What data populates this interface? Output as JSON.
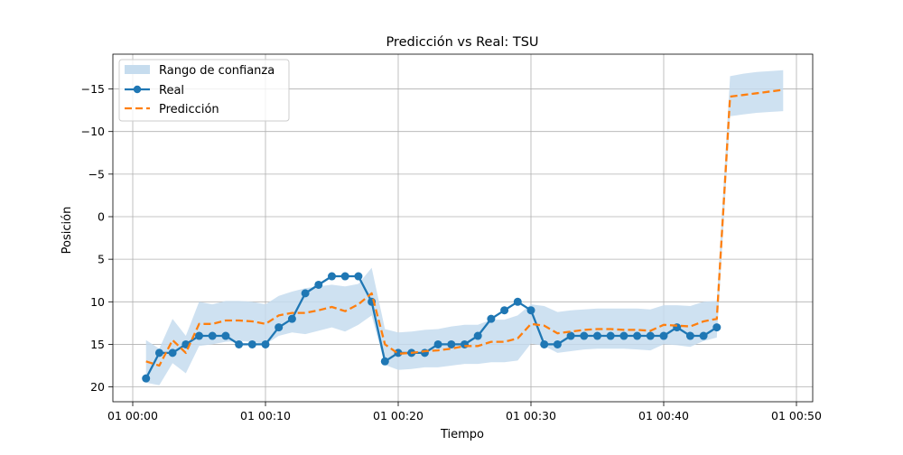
{
  "chart_data": {
    "type": "line",
    "title": "Predicción vs Real: TSU",
    "xlabel": "Tiempo",
    "ylabel": "Posición",
    "y_inverted": true,
    "grid": true,
    "legend_position": "upper-left",
    "x_ticks": [
      {
        "minute": 0,
        "label": "01 00:00"
      },
      {
        "minute": 10,
        "label": "01 00:10"
      },
      {
        "minute": 20,
        "label": "01 00:20"
      },
      {
        "minute": 30,
        "label": "01 00:30"
      },
      {
        "minute": 40,
        "label": "01 00:40"
      },
      {
        "minute": 50,
        "label": "01 00:50"
      }
    ],
    "y_ticks": [
      20,
      15,
      10,
      5,
      0,
      -5,
      -10,
      -15
    ],
    "y_tick_labels": [
      "20",
      "15",
      "10",
      "5",
      "0",
      "−5",
      "−10",
      "−15"
    ],
    "colors": {
      "real": "#1f77b4",
      "prediction": "#ff7f0e",
      "band": "#c6dcee"
    },
    "legend": {
      "band": "Rango de confianza",
      "real": "Real",
      "prediction": "Predicción"
    },
    "real": {
      "name": "Real",
      "x": [
        1,
        2,
        3,
        4,
        5,
        6,
        7,
        8,
        9,
        10,
        11,
        12,
        13,
        14,
        15,
        16,
        17,
        18,
        19,
        20,
        21,
        22,
        23,
        24,
        25,
        26,
        27,
        28,
        29,
        30,
        31,
        32,
        33,
        34,
        35,
        36,
        37,
        38,
        39,
        40,
        41,
        42,
        43,
        44
      ],
      "y": [
        19,
        16,
        16,
        15,
        14,
        14,
        14,
        15,
        15,
        15,
        13,
        12,
        9,
        8,
        7,
        7,
        7,
        10,
        17,
        16,
        16,
        16,
        15,
        15,
        15,
        14,
        12,
        11,
        10,
        11,
        15,
        15,
        14,
        14,
        14,
        14,
        14,
        14,
        14,
        14,
        13,
        14,
        14,
        13
      ]
    },
    "prediction": {
      "name": "Predicción",
      "x": [
        1,
        2,
        3,
        4,
        5,
        6,
        7,
        8,
        9,
        10,
        11,
        12,
        13,
        14,
        15,
        16,
        17,
        18,
        19,
        20,
        21,
        22,
        23,
        24,
        25,
        26,
        27,
        28,
        29,
        30,
        31,
        32,
        33,
        34,
        35,
        36,
        37,
        38,
        39,
        40,
        41,
        42,
        43,
        44,
        45,
        46,
        47,
        48,
        49
      ],
      "y": [
        17,
        17.5,
        14.5,
        16,
        12.6,
        12.6,
        12.2,
        12.2,
        12.3,
        12.6,
        11.6,
        11.3,
        11.3,
        11.0,
        10.6,
        11.1,
        10.3,
        9.0,
        15.0,
        16.1,
        16.0,
        15.8,
        15.7,
        15.5,
        15.2,
        15.2,
        14.7,
        14.7,
        14.3,
        12.6,
        12.8,
        13.7,
        13.5,
        13.3,
        13.2,
        13.2,
        13.3,
        13.3,
        13.4,
        12.7,
        12.8,
        12.9,
        12.3,
        12.0,
        -14.1,
        -14.3,
        -14.5,
        -14.7,
        -14.9
      ]
    },
    "confidence_band": {
      "x": [
        1,
        2,
        3,
        4,
        5,
        6,
        7,
        8,
        9,
        10,
        11,
        12,
        13,
        14,
        15,
        16,
        17,
        18,
        19,
        20,
        21,
        22,
        23,
        24,
        25,
        26,
        27,
        28,
        29,
        30,
        31,
        32,
        33,
        34,
        35,
        36,
        37,
        38,
        39,
        40,
        41,
        42,
        43,
        44,
        45,
        46,
        47,
        48,
        49
      ],
      "lower": [
        14.5,
        15.5,
        12.0,
        14.0,
        10.0,
        10.3,
        9.9,
        9.9,
        10.0,
        10.3,
        9.3,
        8.8,
        8.4,
        8.2,
        8.0,
        8.2,
        7.9,
        6.0,
        13.2,
        13.6,
        13.5,
        13.3,
        13.2,
        12.9,
        12.7,
        12.7,
        12.1,
        12.1,
        11.6,
        10.3,
        10.5,
        11.2,
        11.0,
        10.9,
        10.8,
        10.8,
        10.8,
        10.8,
        10.9,
        10.4,
        10.4,
        10.5,
        10.0,
        9.9,
        -16.5,
        -16.8,
        -17.0,
        -17.1,
        -17.2
      ],
      "upper": [
        19.5,
        19.8,
        17.2,
        18.4,
        15.2,
        15.0,
        14.7,
        14.6,
        14.7,
        15.0,
        14.0,
        13.6,
        13.8,
        13.4,
        13.0,
        13.5,
        12.7,
        11.6,
        17.4,
        18.0,
        17.9,
        17.7,
        17.7,
        17.5,
        17.3,
        17.3,
        17.1,
        17.1,
        16.9,
        14.9,
        15.2,
        16.0,
        15.8,
        15.6,
        15.5,
        15.5,
        15.5,
        15.6,
        15.7,
        15.0,
        15.1,
        15.3,
        14.6,
        14.2,
        -11.8,
        -12.0,
        -12.2,
        -12.3,
        -12.4
      ]
    }
  }
}
